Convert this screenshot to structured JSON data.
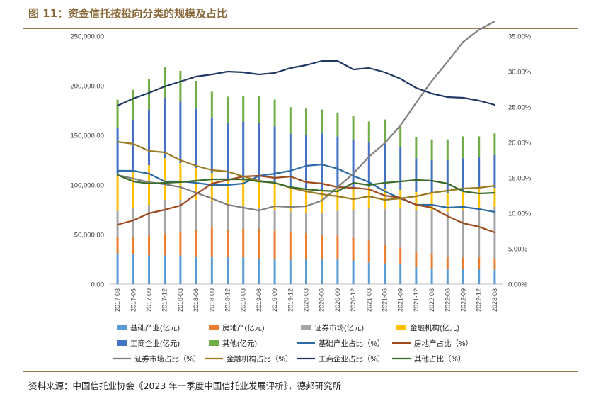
{
  "header": {
    "title": "图 11：资金信托按投向分类的规模及占比"
  },
  "footer": {
    "source": "资料来源：中国信托业协会《2023 年一季度中国信托业发展评析》，德邦研究所"
  },
  "colors": {
    "base": "#5b9bd5",
    "realestate": "#ed7d31",
    "securities": "#a5a5a5",
    "financial": "#ffc000",
    "industrial": "#4472c4",
    "other": "#70ad47",
    "base_pct": "#2e6aa3",
    "realestate_pct": "#9e4a1f",
    "securities_pct": "#7f7f7f",
    "financial_pct": "#9a7a1f",
    "industrial_pct": "#203864",
    "other_pct": "#3a6b2a"
  },
  "chart_data": {
    "type": "bar",
    "stacked": true,
    "categories": [
      "2017-03",
      "2017-06",
      "2017-09",
      "2017-12",
      "2018-03",
      "2018-06",
      "2018-09",
      "2018-12",
      "2019-03",
      "2019-06",
      "2019-09",
      "2019-12",
      "2020-03",
      "2020-06",
      "2020-09",
      "2020-12",
      "2021-03",
      "2021-06",
      "2021-09",
      "2021-12",
      "2022-03",
      "2022-06",
      "2022-09",
      "2022-12",
      "2023-03"
    ],
    "left_axis": {
      "min": 0,
      "max": 250000,
      "step": 50000,
      "ticks": [
        "0.00",
        "50,000.00",
        "100,000.00",
        "150,000.00",
        "200,000.00",
        "250,000.00"
      ]
    },
    "right_axis": {
      "min": 0,
      "max": 35,
      "step": 5,
      "ticks": [
        "0.00%",
        "5.00%",
        "10.00%",
        "15.00%",
        "20.00%",
        "25.00%",
        "30.00%",
        "35.00%"
      ]
    },
    "series": [
      {
        "key": "base",
        "name": "基础产业(亿元)",
        "axis": "left",
        "kind": "bar",
        "values": [
          31000,
          30000,
          29000,
          29000,
          29000,
          28000,
          28000,
          27000,
          27000,
          26000,
          25000,
          24500,
          25000,
          25000,
          25000,
          24000,
          22000,
          21000,
          20000,
          17000,
          16000,
          15000,
          15000,
          15000,
          14500
        ]
      },
      {
        "key": "realestate",
        "name": "房地产(亿元)",
        "axis": "left",
        "kind": "bar",
        "values": [
          16000,
          18000,
          20000,
          22000,
          24000,
          27000,
          29000,
          28000,
          29000,
          30000,
          29000,
          28000,
          26000,
          25000,
          24000,
          23000,
          22000,
          19000,
          17000,
          15000,
          14000,
          13000,
          12000,
          12000,
          11500
        ]
      },
      {
        "key": "securities",
        "name": "证券市场(亿元)",
        "axis": "left",
        "kind": "bar",
        "values": [
          27000,
          29000,
          31000,
          34000,
          32000,
          30000,
          27000,
          25000,
          23000,
          21000,
          21000,
          21000,
          21000,
          22000,
          25000,
          28000,
          33000,
          36000,
          40000,
          43000,
          44000,
          45000,
          48000,
          50000,
          52000
        ]
      },
      {
        "key": "financial",
        "name": "金融机构(亿元)",
        "axis": "left",
        "kind": "bar",
        "values": [
          37000,
          38000,
          40000,
          42000,
          37000,
          32000,
          28000,
          26000,
          26000,
          27000,
          26000,
          24000,
          24000,
          23000,
          22000,
          21000,
          21000,
          20000,
          18000,
          18000,
          18000,
          19000,
          19000,
          19000,
          19000
        ]
      },
      {
        "key": "industrial",
        "name": "工商企业(亿元)",
        "axis": "left",
        "kind": "bar",
        "values": [
          47000,
          51000,
          56000,
          61000,
          62000,
          60000,
          56000,
          57000,
          59000,
          59000,
          58000,
          54000,
          55000,
          57000,
          53000,
          50000,
          45000,
          47000,
          43000,
          34000,
          33000,
          33000,
          33000,
          32000,
          33000
        ]
      },
      {
        "key": "other",
        "name": "其他(亿元)",
        "axis": "left",
        "kind": "bar",
        "values": [
          28000,
          30000,
          31000,
          31000,
          31000,
          28000,
          26000,
          26000,
          26000,
          27000,
          27000,
          27000,
          26000,
          24000,
          24000,
          24000,
          21000,
          23000,
          21000,
          21000,
          21000,
          21000,
          22000,
          21000,
          22000
        ]
      },
      {
        "key": "base_pct",
        "name": "基础产业占比（%）",
        "axis": "right",
        "kind": "line",
        "values": [
          16.0,
          16.0,
          15.6,
          14.5,
          14.5,
          14.3,
          14.0,
          14.0,
          14.2,
          15.3,
          15.6,
          16.0,
          16.7,
          16.9,
          16.3,
          15.3,
          14.4,
          13.1,
          12.1,
          11.2,
          11.2,
          10.8,
          10.9,
          10.6,
          10.2
        ]
      },
      {
        "key": "realestate_pct",
        "name": "房地产占比（%）",
        "axis": "right",
        "kind": "line",
        "values": [
          8.4,
          9.0,
          10.0,
          10.5,
          11.1,
          12.7,
          14.2,
          14.7,
          15.2,
          15.3,
          15.0,
          15.2,
          14.4,
          14.2,
          13.7,
          13.6,
          13.4,
          12.5,
          12.2,
          11.2,
          10.8,
          9.6,
          8.6,
          8.1,
          7.3
        ]
      },
      {
        "key": "securities_pct",
        "name": "证券市场占比（%）",
        "axis": "right",
        "kind": "line",
        "values": [
          15.4,
          14.9,
          14.4,
          14.1,
          13.7,
          12.9,
          12.1,
          11.2,
          10.8,
          10.4,
          11.0,
          10.9,
          11.0,
          11.8,
          13.7,
          15.6,
          18.0,
          19.9,
          22.4,
          25.6,
          28.7,
          31.4,
          34.2,
          35.9,
          37.1
        ]
      },
      {
        "key": "financial_pct",
        "name": "金融机构占比（%）",
        "axis": "right",
        "kind": "line",
        "values": [
          20.1,
          19.8,
          18.8,
          18.6,
          17.5,
          16.7,
          16.1,
          15.9,
          15.2,
          14.6,
          14.3,
          13.6,
          13.1,
          12.7,
          12.4,
          12.0,
          12.4,
          11.9,
          12.1,
          12.4,
          12.9,
          13.2,
          13.5,
          13.6,
          13.9
        ]
      },
      {
        "key": "industrial_pct",
        "name": "工商企业占比（%）",
        "axis": "right",
        "kind": "line",
        "values": [
          25.2,
          26.2,
          27.0,
          27.9,
          28.6,
          29.3,
          29.6,
          30.0,
          29.9,
          29.6,
          29.8,
          30.5,
          30.9,
          31.5,
          31.5,
          30.3,
          30.5,
          29.9,
          29.0,
          27.7,
          26.9,
          26.4,
          26.3,
          25.9,
          25.3
        ]
      },
      {
        "key": "other_pct",
        "name": "其他占比（%）",
        "axis": "right",
        "kind": "line",
        "values": [
          15.4,
          14.5,
          14.2,
          14.3,
          14.4,
          14.6,
          14.8,
          14.8,
          14.8,
          14.5,
          14.3,
          13.7,
          13.4,
          13.2,
          13.1,
          14.3,
          14.0,
          14.3,
          14.5,
          14.7,
          14.6,
          14.2,
          13.1,
          12.8,
          12.9
        ]
      }
    ]
  }
}
